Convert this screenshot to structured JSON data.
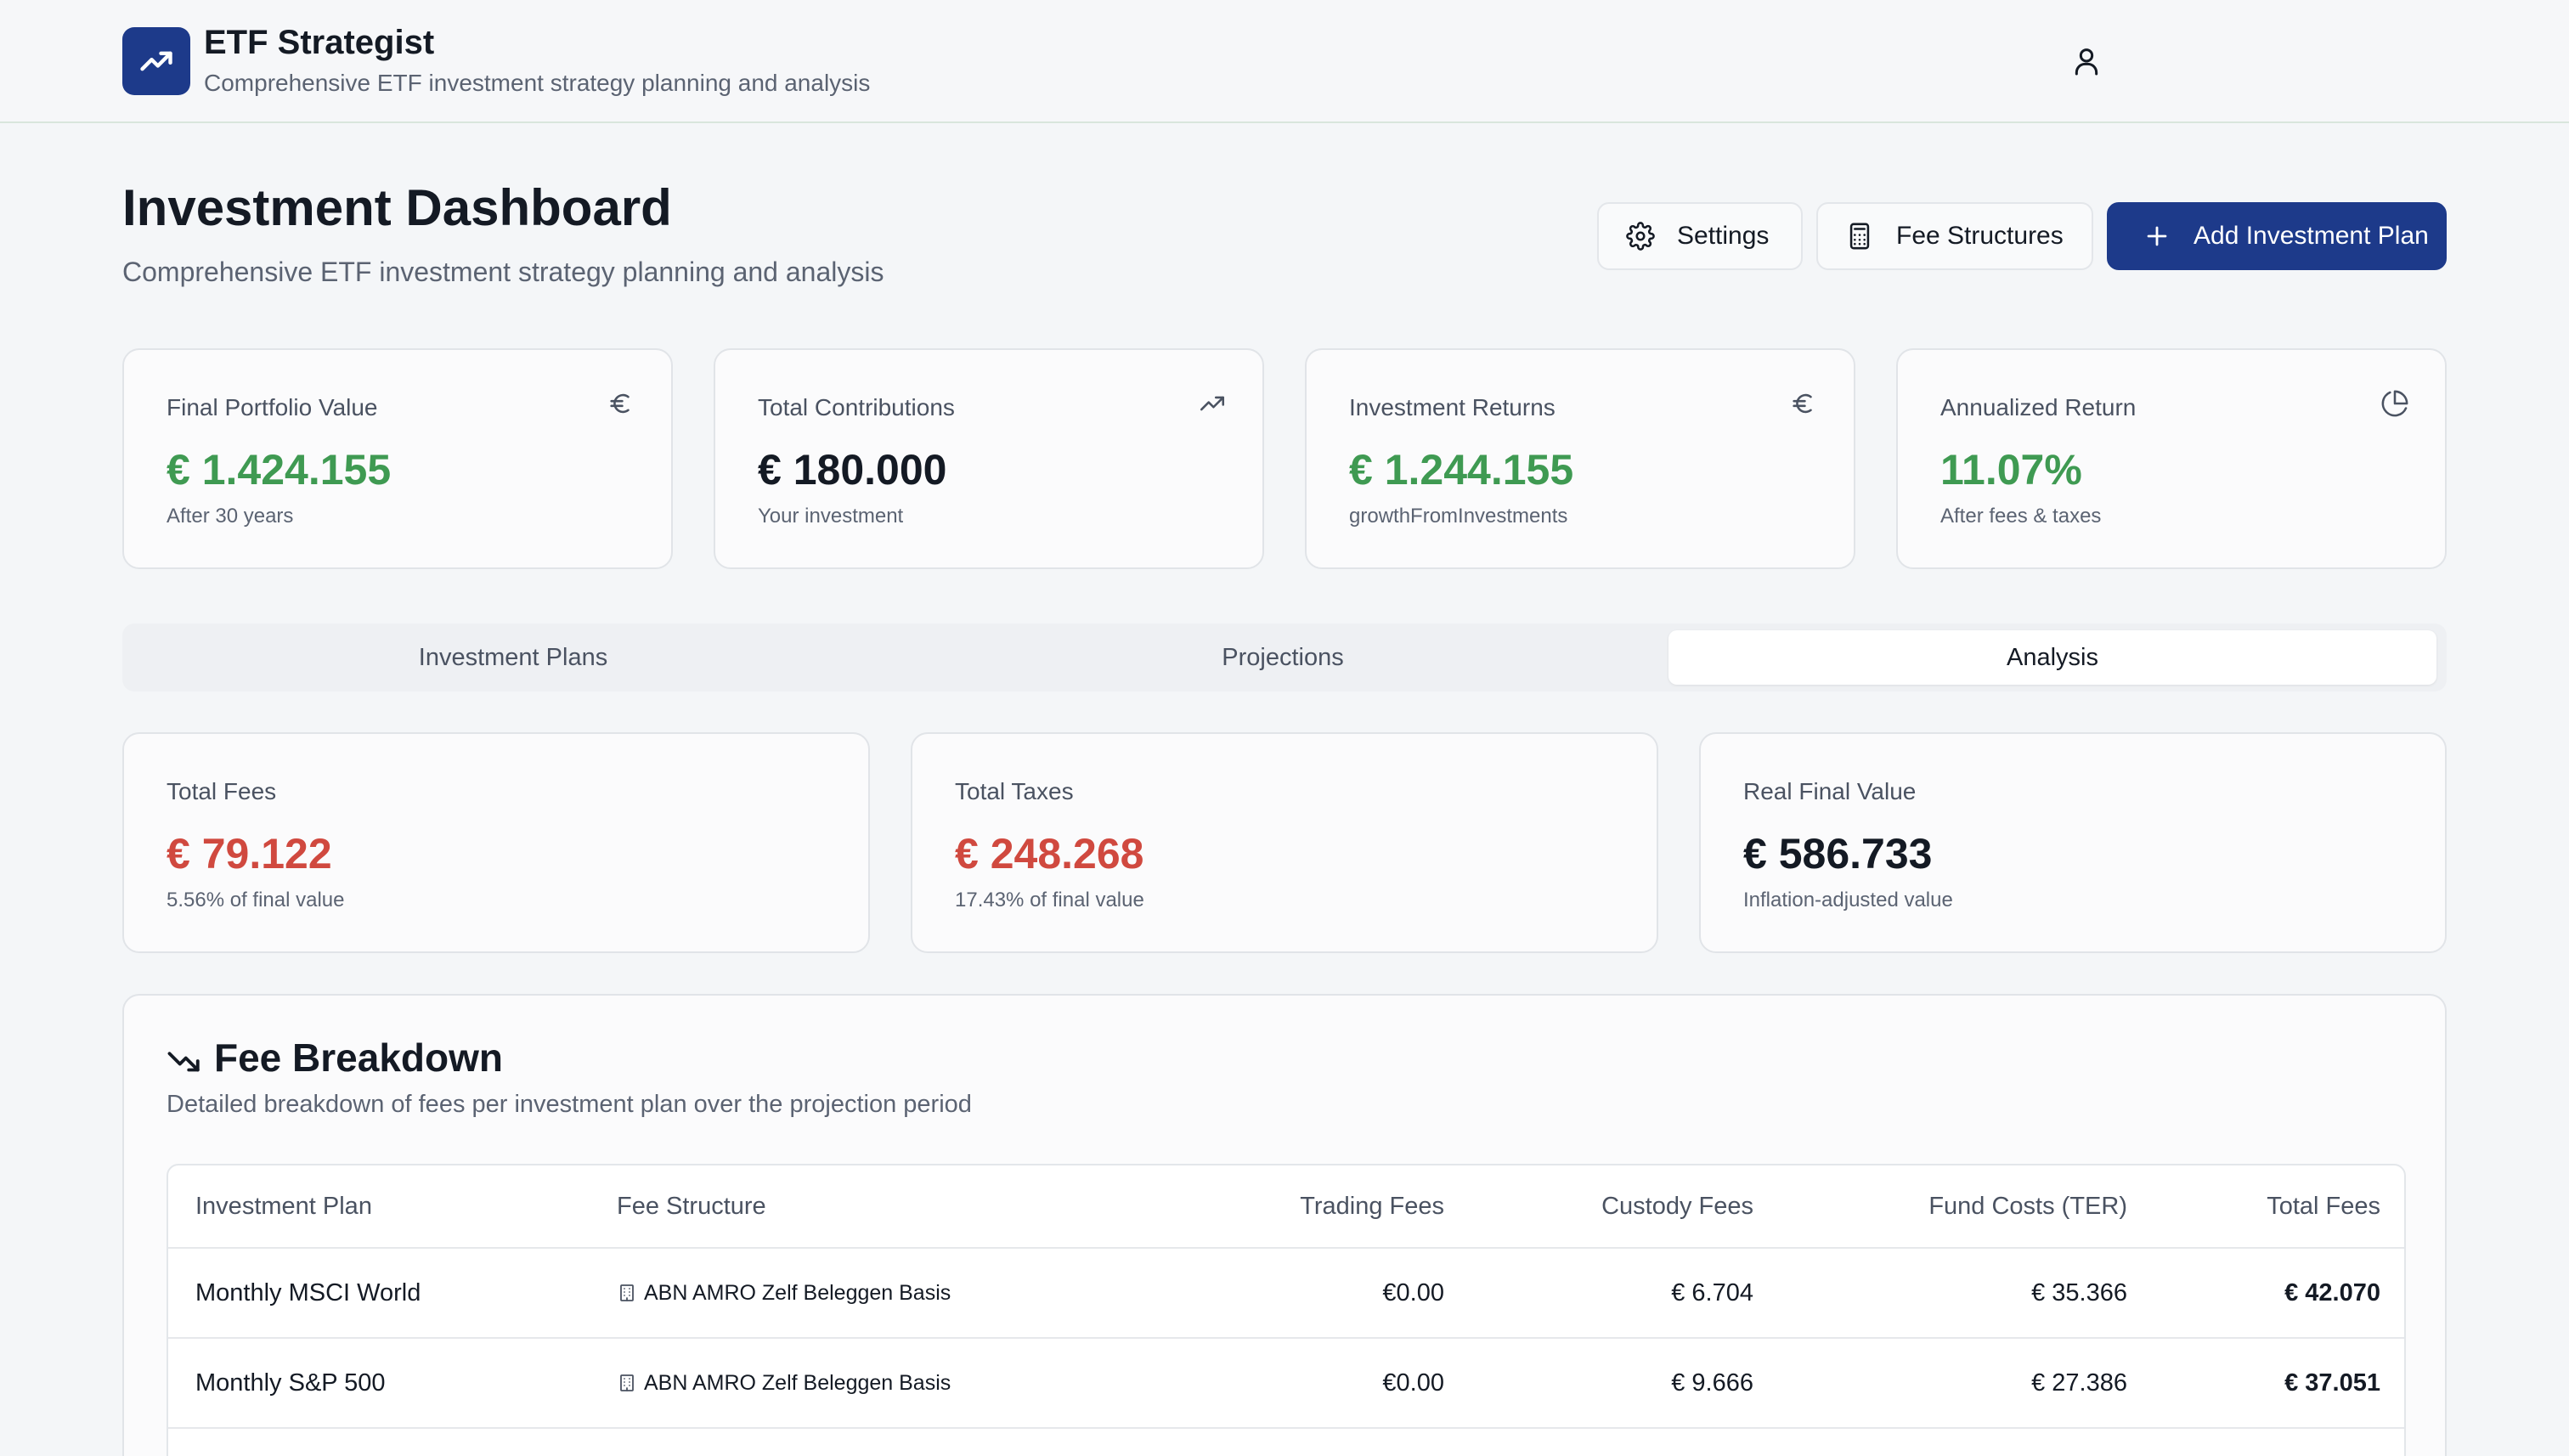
{
  "app": {
    "title": "ETF Strategist",
    "subtitle": "Comprehensive ETF investment strategy planning and analysis"
  },
  "page": {
    "title": "Investment Dashboard",
    "subtitle": "Comprehensive ETF investment strategy planning and analysis"
  },
  "actions": {
    "settings": "Settings",
    "fee_structures": "Fee Structures",
    "add_plan": "Add Investment Plan"
  },
  "stats": [
    {
      "label": "Final Portfolio Value",
      "value": "€ 1.424.155",
      "sub": "After 30 years",
      "icon": "euro-icon"
    },
    {
      "label": "Total Contributions",
      "value": "€ 180.000",
      "sub": "Your investment",
      "icon": "trending-up-icon"
    },
    {
      "label": "Investment Returns",
      "value": "€ 1.244.155",
      "sub": "growthFromInvestments",
      "icon": "euro-icon"
    },
    {
      "label": "Annualized Return",
      "value": "11.07%",
      "sub": "After fees & taxes",
      "icon": "pie-chart-icon"
    }
  ],
  "tabs": [
    {
      "label": "Investment Plans"
    },
    {
      "label": "Projections"
    },
    {
      "label": "Analysis",
      "active": true
    }
  ],
  "summary": [
    {
      "label": "Total Fees",
      "value": "€ 79.122",
      "sub": "5.56% of final value"
    },
    {
      "label": "Total Taxes",
      "value": "€ 248.268",
      "sub": "17.43% of final value"
    },
    {
      "label": "Real Final Value",
      "value": "€ 586.733",
      "sub": "Inflation-adjusted value"
    }
  ],
  "fee_breakdown": {
    "title": "Fee Breakdown",
    "description": "Detailed breakdown of fees per investment plan over the projection period",
    "columns": [
      "Investment Plan",
      "Fee Structure",
      "Trading Fees",
      "Custody Fees",
      "Fund Costs (TER)",
      "Total Fees"
    ],
    "rows": [
      {
        "plan": "Monthly MSCI World",
        "structure": "ABN AMRO Zelf Beleggen Basis",
        "trading": "€0.00",
        "custody": "€ 6.704",
        "ter": "€ 35.366",
        "total": "€ 42.070"
      },
      {
        "plan": "Monthly S&P 500",
        "structure": "ABN AMRO Zelf Beleggen Basis",
        "trading": "€0.00",
        "custody": "€ 9.666",
        "ter": "€ 27.386",
        "total": "€ 37.051"
      }
    ]
  },
  "colors": {
    "brand": "#1d3a8a",
    "positive": "#3f9a52",
    "negative": "#d0493f"
  }
}
